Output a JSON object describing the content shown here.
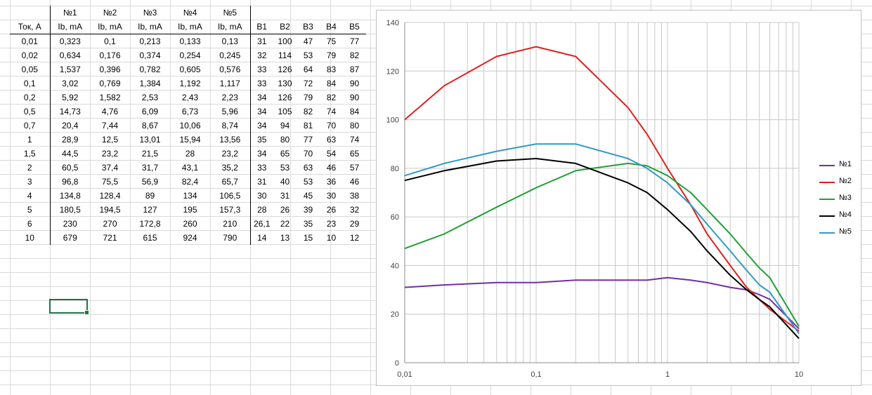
{
  "sheet": {
    "header_row1": [
      "",
      "№1",
      "№2",
      "№3",
      "№4",
      "№5",
      "",
      "",
      "",
      "",
      ""
    ],
    "header_row2": [
      "Ток, А",
      "Ib, mA",
      "Ib, mA",
      "Ib, mA",
      "Ib, mA",
      "Ib, mA",
      "B1",
      "B2",
      "B3",
      "B4",
      "B5"
    ],
    "rows": [
      [
        "0,01",
        "0,323",
        "0,1",
        "0,213",
        "0,133",
        "0,13",
        "31",
        "100",
        "47",
        "75",
        "77"
      ],
      [
        "0,02",
        "0,634",
        "0,176",
        "0,374",
        "0,254",
        "0,245",
        "32",
        "114",
        "53",
        "79",
        "82"
      ],
      [
        "0,05",
        "1,537",
        "0,396",
        "0,782",
        "0,605",
        "0,576",
        "33",
        "126",
        "64",
        "83",
        "87"
      ],
      [
        "0,1",
        "3,02",
        "0,769",
        "1,384",
        "1,192",
        "1,117",
        "33",
        "130",
        "72",
        "84",
        "90"
      ],
      [
        "0,2",
        "5,92",
        "1,582",
        "2,53",
        "2,43",
        "2,23",
        "34",
        "126",
        "79",
        "82",
        "90"
      ],
      [
        "0,5",
        "14,73",
        "4,76",
        "6,09",
        "6,73",
        "5,96",
        "34",
        "105",
        "82",
        "74",
        "84"
      ],
      [
        "0,7",
        "20,4",
        "7,44",
        "8,67",
        "10,06",
        "8,74",
        "34",
        "94",
        "81",
        "70",
        "80"
      ],
      [
        "1",
        "28,9",
        "12,5",
        "13,01",
        "15,94",
        "13,56",
        "35",
        "80",
        "77",
        "63",
        "74"
      ],
      [
        "1,5",
        "44,5",
        "23,2",
        "21,5",
        "28",
        "23,2",
        "34",
        "65",
        "70",
        "54",
        "65"
      ],
      [
        "2",
        "60,5",
        "37,4",
        "31,7",
        "43,1",
        "35,2",
        "33",
        "53",
        "63",
        "46",
        "57"
      ],
      [
        "3",
        "96,8",
        "75,5",
        "56,9",
        "82,4",
        "65,7",
        "31",
        "40",
        "53",
        "36",
        "46"
      ],
      [
        "4",
        "134,8",
        "128,4",
        "89",
        "134",
        "106,5",
        "30",
        "31",
        "45",
        "30",
        "38"
      ],
      [
        "5",
        "180,5",
        "194,5",
        "127",
        "195",
        "157,3",
        "28",
        "26",
        "39",
        "26",
        "32"
      ],
      [
        "6",
        "230",
        "270",
        "172,8",
        "260",
        "210",
        "26,1",
        "22",
        "35",
        "23",
        "29"
      ],
      [
        "10",
        "679",
        "721",
        "615",
        "924",
        "790",
        "14",
        "13",
        "15",
        "10",
        "12"
      ]
    ]
  },
  "chart_data": {
    "type": "line",
    "x_scale": "log",
    "x": [
      0.01,
      0.02,
      0.05,
      0.1,
      0.2,
      0.5,
      0.7,
      1,
      1.5,
      2,
      3,
      4,
      5,
      6,
      10
    ],
    "xlim": [
      0.01,
      10
    ],
    "ylim": [
      0,
      140
    ],
    "x_ticks": [
      "0,01",
      "0,1",
      "1",
      "10"
    ],
    "y_ticks": [
      0,
      20,
      40,
      60,
      80,
      100,
      120,
      140
    ],
    "grid": true,
    "legend_position": "right",
    "series": [
      {
        "name": "№1",
        "color": "#7030a0",
        "values": [
          31,
          32,
          33,
          33,
          34,
          34,
          34,
          35,
          34,
          33,
          31,
          30,
          28,
          26.1,
          14
        ]
      },
      {
        "name": "№2",
        "color": "#e02020",
        "values": [
          100,
          114,
          126,
          130,
          126,
          105,
          94,
          80,
          65,
          53,
          40,
          31,
          26,
          22,
          13
        ]
      },
      {
        "name": "№3",
        "color": "#21a036",
        "values": [
          47,
          53,
          64,
          72,
          79,
          82,
          81,
          77,
          70,
          63,
          53,
          45,
          39,
          35,
          15
        ]
      },
      {
        "name": "№4",
        "color": "#000000",
        "values": [
          75,
          79,
          83,
          84,
          82,
          74,
          70,
          63,
          54,
          46,
          36,
          30,
          26,
          23,
          10
        ]
      },
      {
        "name": "№5",
        "color": "#2e9ac4",
        "values": [
          77,
          82,
          87,
          90,
          90,
          84,
          80,
          74,
          65,
          57,
          46,
          38,
          32,
          29,
          12
        ]
      }
    ]
  }
}
